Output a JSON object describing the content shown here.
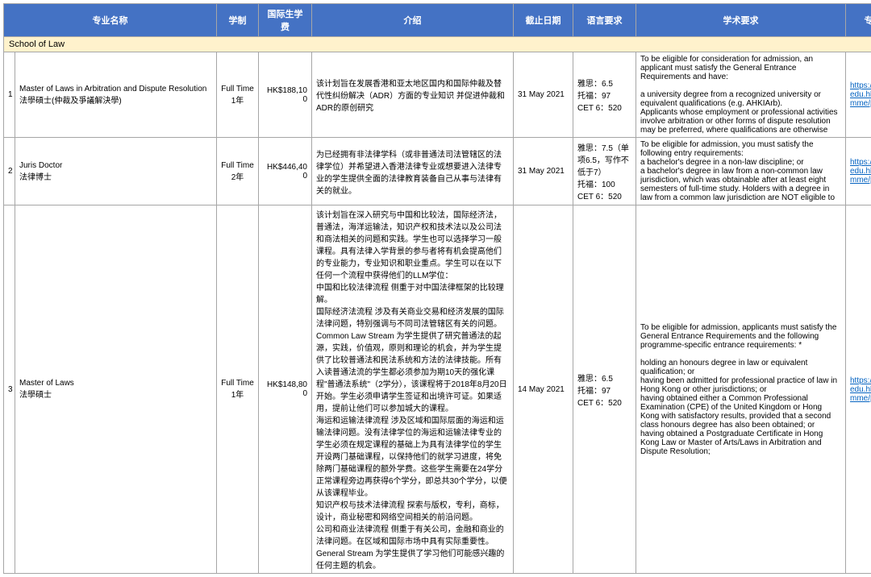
{
  "headers": {
    "name": "专业名称",
    "mode": "学制",
    "fee": "国际生学费",
    "intro": "介绍",
    "deadline": "截止日期",
    "lang": "语言要求",
    "acad": "学术要求",
    "link": "专业链接"
  },
  "section": "School of Law",
  "rows": [
    {
      "idx": "1",
      "name": "Master of Laws in Arbitration and Dispute Resolution\n法學碩士(仲裁及爭議解決學)",
      "mode": "Full Time\n1年",
      "fee": "HK$188,100",
      "intro": "该计划旨在发展香港和亚太地区国内和国际仲裁及替代性纠纷解决（ADR）方面的专业知识 并促进仲裁和ADR的原创研究",
      "deadline": "31 May 2021",
      "lang": "雅思：6.5\n托福：97\nCET 6：520",
      "acad": "To be eligible for consideration for admission, an applicant must satisfy the General Entrance Requirements and have:\n\na university degree from a recognized university or equivalent qualifications (e.g. AHKIArb).\nApplicants whose employment or professional activities involve arbitration or other forms of dispute resolution may be preferred, where qualifications are otherwise",
      "link": "https://www.cityu.edu.hk/pg/programme/p41"
    },
    {
      "idx": "2",
      "name": "Juris Doctor\n法律博士",
      "mode": "Full Time\n2年",
      "fee": "HK$446,400",
      "intro": "为已经拥有非法律学科（或非普通法司法管辖区的法律学位）并希望进入香港法律专业或想要进入法律专业的学生提供全面的法律教育装备自己从事与法律有关的就业。",
      "deadline": "31 May 2021",
      "lang": "雅思：7.5（单项6.5，写作不低于7）\n托福：100\nCET 6：520",
      "acad": "To be eligible for admission, you must satisfy the following entry requirements:\na bachelor's degree in a non-law discipline; or\na bachelor's degree in law from a non-common law jurisdiction, which was obtainable after at least eight semesters of full-time study.  Holders with a degree in law from a common law jurisdiction are NOT eligible to",
      "link": "https://www.cityu.edu.hk/pg/programme/p43"
    },
    {
      "idx": "3",
      "name": "Master of Laws\n法學碩士",
      "mode": "Full Time\n1年",
      "fee": "HK$148,800",
      "intro": "该计划旨在深入研究与中国和比较法，国际经济法，普通法，海洋运输法，知识产权和技术法以及公司法和商法相关的问题和实践。学生也可以选择学习一般课程。具有法律入学背景的参与者将有机会提高他们的专业能力，专业知识和职业重点。学生可以在以下任何一个流程中获得他们的LLM学位：\n中国和比较法律流程  侧重于对中国法律框架的比较理解。\n国际经济法流程  涉及有关商业交易和经济发展的国际法律问题，特别强调与不同司法管辖区有关的问题。\nCommon Law Stream  为学生提供了研究普通法的起源，实践，价值观，原则和理论的机会，并为学生提供了比较普通法和民法系统和方法的法律技能。所有入读普通法流的学生都必须参加为期10天的强化课程\"普通法系统\"（2学分），该课程将于2018年8月20日开始。学生必须申请学生签证和出境许可证。如果适用，提前让他们可以参加城大的课程。\n海运和运输法律流程  涉及区域和国际层面的海运和运输法律问题。没有法律学位的海运和运输法律专业的学生必须在规定课程的基础上为具有法律学位的学生开设两门基础课程，以保持他们的就学习进度，将免除两门基础课程的额外学费。这些学生需要在24学分正常课程旁边再获得6个学分，即总共30个学分，以便从该课程毕业。\n知识产权与技术法律流程  探索与版权，专利，商标，设计，商业秘密和网络空间相关的前沿问题。\n公司和商业法律流程  侧重于有关公司，金融和商业的法律问题。在区域和国际市场中具有实际重要性。\nGeneral Stream  为学生提供了学习他们可能感兴趣的任何主题的机会。",
      "deadline": "14 May 2021",
      "lang": "雅思：6.5\n托福：97\nCET 6：520",
      "acad": "To be eligible for admission, applicants must satisfy the General Entrance Requirements and the following programme-specific entrance requirements: *\n\nholding an honours degree in law or equivalent qualification; or\nhaving been admitted for professional practice of law in Hong Kong or other jurisdictions; or\nhaving obtained either a Common Professional Examination (CPE) of the United Kingdom or Hong Kong with satisfactory results, provided that a second class honours degree has also been obtained; or\nhaving obtained a Postgraduate Certificate in Hong Kong Law or Master of Arts/Laws in Arbitration and Dispute Resolution;",
      "link": "https://www.cityu.edu.hk/pg/programme/p46"
    }
  ],
  "style": {
    "header_bg": "#4472c4",
    "header_fg": "#ffffff",
    "section_bg": "#fff2cc",
    "border": "#a6a6a6",
    "link_color": "#0563c1",
    "font_header": 11,
    "font_cell": 10
  }
}
